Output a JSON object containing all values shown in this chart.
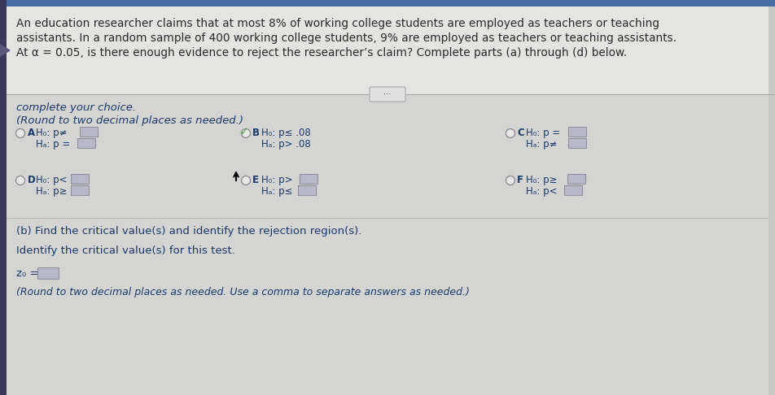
{
  "bg_top": "#dcdcdc",
  "bg_top_text": "#e8e8e8",
  "bg_bottom": "#d0d0d0",
  "left_strip_color": "#3a3a5a",
  "left_strip2_color": "#5a5a7a",
  "top_blue_bar": "#4a6fa5",
  "title_text_line1": "An education researcher claims that at most 8% of working college students are employed as teachers or teaching",
  "title_text_line2": "assistants. In a random sample of 400 working college students, 9% are employed as teachers or teaching assistants.",
  "title_text_line3": "At α = 0.05, is there enough evidence to reject the researcher’s claim? Complete parts (a) through (d) below.",
  "complete_choice": "complete your choice.",
  "round_note": "(Round to two decimal places as needed.)",
  "text_color": "#2a2a2a",
  "blue_text": "#2255aa",
  "dark_blue_text": "#1a3a6a",
  "radio_color": "#cccccc",
  "radio_border": "#aaaaaa",
  "input_fill": "#b8b8c8",
  "input_border": "#9090a0",
  "checkmark_color": "#44aa44",
  "arrow_color": "#222222",
  "divider_color": "#aaaaaa",
  "btn_color": "#e0e0e0",
  "btn_border": "#aaaaaa",
  "option_A_H0": "H₀: p≠",
  "option_A_Ha": "Hₐ: p =",
  "option_B_H0": "H₀: p≤ .08",
  "option_B_Ha": "Hₐ: p> .08",
  "option_C_H0": "H₀: p =",
  "option_C_Ha": "Hₐ: p≠",
  "option_D_H0": "H₀: p<",
  "option_D_Ha": "Hₐ: p≥",
  "option_E_H0": "H₀: p>",
  "option_E_Ha": "Hₐ: p≤",
  "option_F_H0": "H₀: p≥",
  "option_F_Ha": "Hₐ: p<",
  "part_b_title": "(b) Find the critical value(s) and identify the rejection region(s).",
  "part_b_sub": "Identify the critical value(s) for this test.",
  "z0_label": "z₀ =",
  "round_note2": "(Round to two decimal places as needed. Use a comma to separate answers as needed.)"
}
